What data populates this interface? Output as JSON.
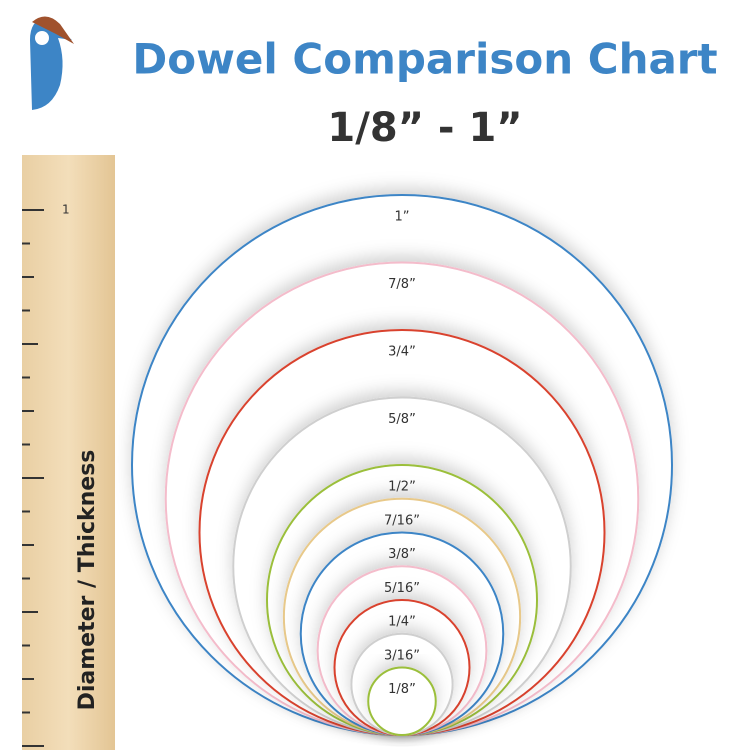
{
  "header": {
    "title": "Dowel Comparison Chart",
    "subtitle": "1/8” - 1”"
  },
  "ruler": {
    "label": "1",
    "axis_label": "Diameter / Thickness"
  },
  "circles": [
    {
      "label": "1”",
      "diameter": 1,
      "color": "#3d85c6"
    },
    {
      "label": "7/8”",
      "diameter": 0.875,
      "color": "#f4bccb"
    },
    {
      "label": "3/4”",
      "diameter": 0.75,
      "color": "#d9432f"
    },
    {
      "label": "5/8”",
      "diameter": 0.625,
      "color": "#cfcfcf"
    },
    {
      "label": "1/2”",
      "diameter": 0.5,
      "color": "#9bbf3b"
    },
    {
      "label": "7/16”",
      "diameter": 0.4375,
      "color": "#e8c98a"
    },
    {
      "label": "3/8”",
      "diameter": 0.375,
      "color": "#3d85c6"
    },
    {
      "label": "5/16”",
      "diameter": 0.3125,
      "color": "#f4bccb"
    },
    {
      "label": "1/4”",
      "diameter": 0.25,
      "color": "#d9432f"
    },
    {
      "label": "3/16”",
      "diameter": 0.1875,
      "color": "#cfcfcf"
    },
    {
      "label": "1/8”",
      "diameter": 0.125,
      "color": "#9bbf3b"
    }
  ]
}
